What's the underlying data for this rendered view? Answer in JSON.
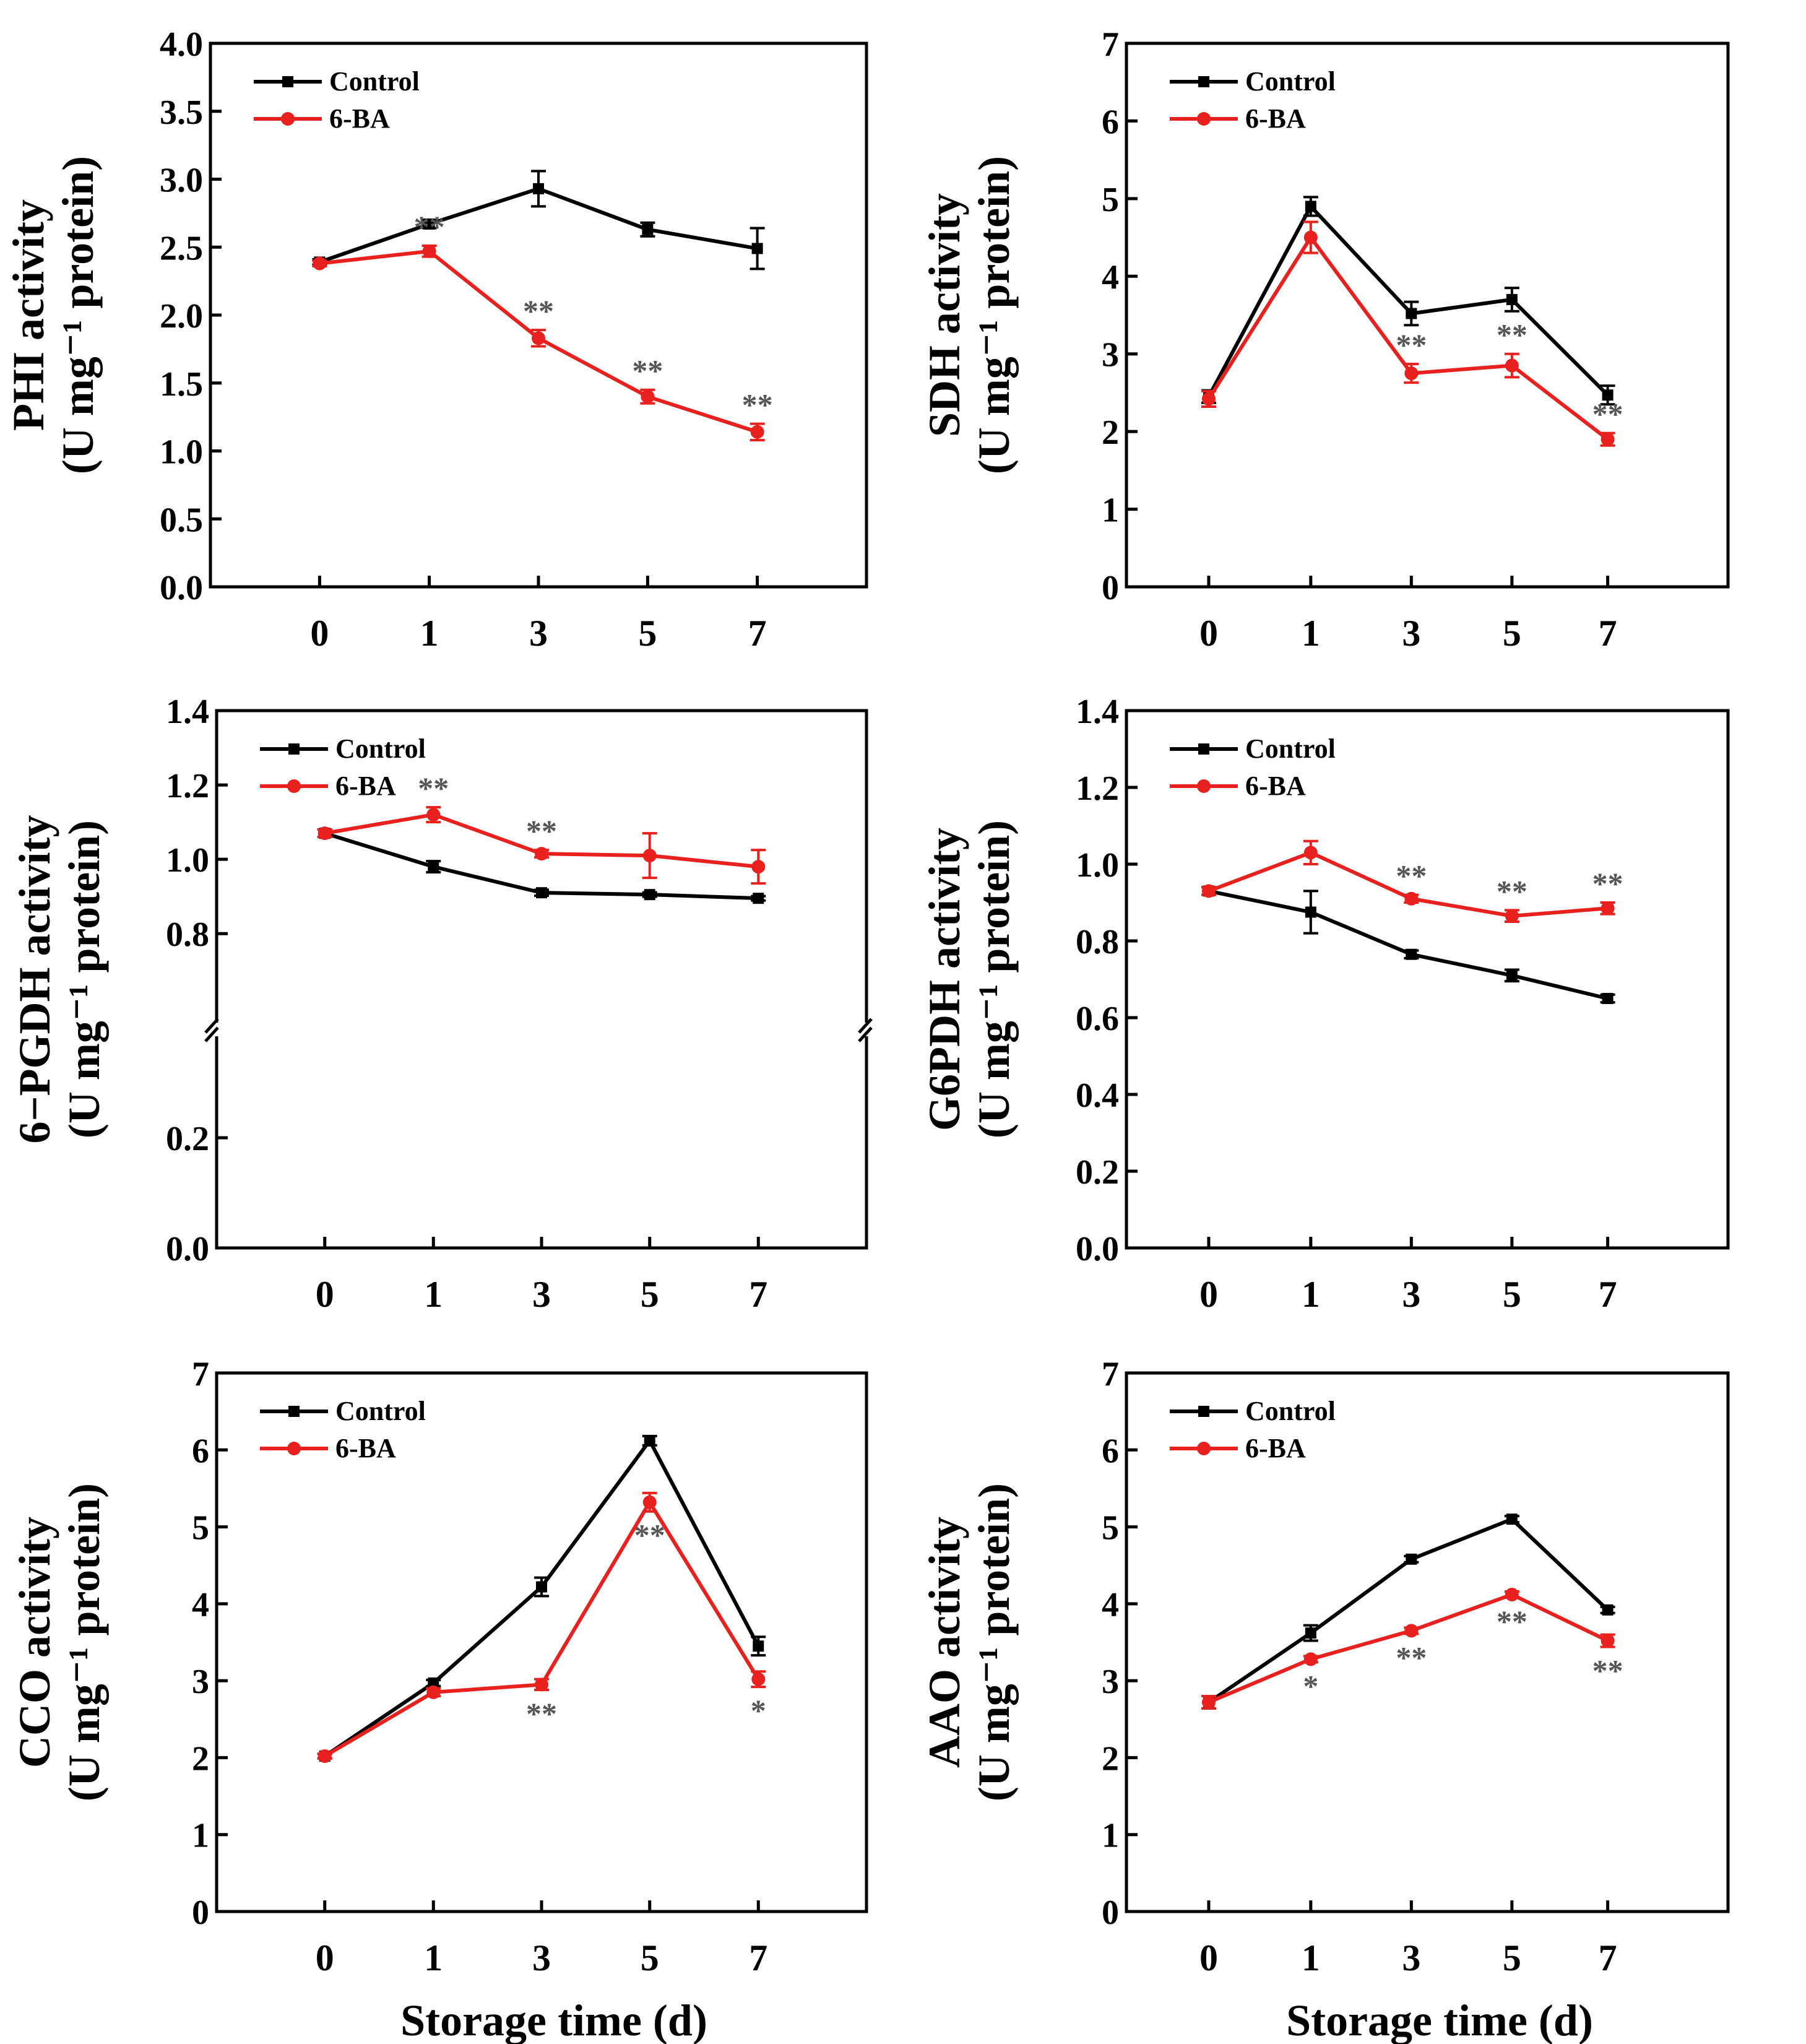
{
  "figure": {
    "x_axis_title": "Storage time (d)",
    "legend_labels": [
      "Control",
      "6-BA"
    ],
    "colors": {
      "control": "#000000",
      "treatment": "#e8201e",
      "annotation": "#555555"
    }
  },
  "chart_data": [
    {
      "type": "line",
      "title": "",
      "xlabel": "",
      "ylabel": "PHI activity",
      "yunit": "(U mg⁻¹ protein)",
      "categories": [
        "0",
        "1",
        "3",
        "5",
        "7"
      ],
      "ylim": [
        0,
        4.0
      ],
      "yticks": [
        "0.0",
        "0.5",
        "1.0",
        "1.5",
        "2.0",
        "2.5",
        "3.0",
        "3.5",
        "4.0"
      ],
      "axis_break": null,
      "legend": {
        "position": "top-left",
        "entries": [
          "Control",
          "6-BA"
        ]
      },
      "series": [
        {
          "name": "Control",
          "values": [
            2.39,
            2.67,
            2.93,
            2.63,
            2.49
          ],
          "errors": [
            0.02,
            0.03,
            0.13,
            0.05,
            0.15
          ],
          "marker": "square"
        },
        {
          "name": "6-BA",
          "values": [
            2.38,
            2.47,
            1.83,
            1.4,
            1.14
          ],
          "errors": [
            0.02,
            0.04,
            0.06,
            0.05,
            0.06
          ],
          "marker": "circle"
        }
      ],
      "annotations": [
        {
          "x": "1",
          "y": 2.47,
          "text": "**"
        },
        {
          "x": "3",
          "y": 1.83,
          "text": "**"
        },
        {
          "x": "5",
          "y": 1.4,
          "text": "**"
        },
        {
          "x": "7",
          "y": 1.14,
          "text": "**"
        }
      ]
    },
    {
      "type": "line",
      "title": "",
      "xlabel": "",
      "ylabel": "SDH activity",
      "yunit": "(U mg⁻¹ protein)",
      "categories": [
        "0",
        "1",
        "3",
        "5",
        "7"
      ],
      "ylim": [
        0,
        7
      ],
      "yticks": [
        "0",
        "1",
        "2",
        "3",
        "4",
        "5",
        "6",
        "7"
      ],
      "axis_break": null,
      "legend": {
        "position": "top-left",
        "entries": [
          "Control",
          "6-BA"
        ]
      },
      "series": [
        {
          "name": "Control",
          "values": [
            2.45,
            4.9,
            3.52,
            3.7,
            2.47
          ],
          "errors": [
            0.08,
            0.12,
            0.15,
            0.15,
            0.12
          ],
          "marker": "square"
        },
        {
          "name": "6-BA",
          "values": [
            2.42,
            4.5,
            2.75,
            2.85,
            1.9
          ],
          "errors": [
            0.1,
            0.2,
            0.12,
            0.15,
            0.08
          ],
          "marker": "circle"
        }
      ],
      "annotations": [
        {
          "x": "3",
          "y": 2.75,
          "text": "**"
        },
        {
          "x": "5",
          "y": 2.85,
          "text": "**"
        },
        {
          "x": "7",
          "y": 1.9,
          "text": "**"
        }
      ]
    },
    {
      "type": "line",
      "title": "",
      "xlabel": "",
      "ylabel": "6−PGDH activity",
      "yunit": "(U mg⁻¹ protein)",
      "categories": [
        "0",
        "1",
        "3",
        "5",
        "7"
      ],
      "ylim": [
        0,
        1.4
      ],
      "yticks": [
        "0.0",
        "0.2",
        "0.8",
        "1.0",
        "1.2",
        "1.4"
      ],
      "axis_break": [
        0.2,
        0.8
      ],
      "legend": {
        "position": "top-left",
        "entries": [
          "Control",
          "6-BA"
        ]
      },
      "series": [
        {
          "name": "Control",
          "values": [
            1.07,
            0.98,
            0.91,
            0.905,
            0.895
          ],
          "errors": [
            0.01,
            0.015,
            0.008,
            0.006,
            0.006
          ],
          "marker": "square"
        },
        {
          "name": "6-BA",
          "values": [
            1.07,
            1.12,
            1.015,
            1.01,
            0.98
          ],
          "errors": [
            0.01,
            0.02,
            0.01,
            0.06,
            0.045
          ],
          "marker": "circle"
        }
      ],
      "annotations": [
        {
          "x": "1",
          "y": 1.12,
          "text": "**"
        },
        {
          "x": "3",
          "y": 1.015,
          "text": "**"
        }
      ]
    },
    {
      "type": "line",
      "title": "",
      "xlabel": "",
      "ylabel": "G6PDH activity",
      "yunit": "(U mg⁻¹ protein)",
      "categories": [
        "0",
        "1",
        "3",
        "5",
        "7"
      ],
      "ylim": [
        0,
        1.4
      ],
      "yticks": [
        "0.0",
        "0.2",
        "0.4",
        "0.6",
        "0.8",
        "1.0",
        "1.2",
        "1.4"
      ],
      "axis_break": null,
      "legend": {
        "position": "top-left",
        "entries": [
          "Control",
          "6-BA"
        ]
      },
      "series": [
        {
          "name": "Control",
          "values": [
            0.93,
            0.875,
            0.765,
            0.71,
            0.65
          ],
          "errors": [
            0.01,
            0.055,
            0.01,
            0.015,
            0.01
          ],
          "marker": "square"
        },
        {
          "name": "6-BA",
          "values": [
            0.93,
            1.03,
            0.91,
            0.865,
            0.885
          ],
          "errors": [
            0.01,
            0.03,
            0.01,
            0.015,
            0.015
          ],
          "marker": "circle"
        }
      ],
      "annotations": [
        {
          "x": "3",
          "y": 0.91,
          "text": "**"
        },
        {
          "x": "5",
          "y": 0.865,
          "text": "**"
        },
        {
          "x": "7",
          "y": 0.885,
          "text": "**"
        }
      ]
    },
    {
      "type": "line",
      "title": "",
      "xlabel": "Storage time (d)",
      "ylabel": "CCO activity",
      "yunit": "(U mg⁻¹ protein)",
      "categories": [
        "0",
        "1",
        "3",
        "5",
        "7"
      ],
      "ylim": [
        0,
        7
      ],
      "yticks": [
        "0",
        "1",
        "2",
        "3",
        "4",
        "5",
        "6",
        "7"
      ],
      "axis_break": null,
      "legend": {
        "position": "top-left",
        "entries": [
          "Control",
          "6-BA"
        ]
      },
      "series": [
        {
          "name": "Control",
          "values": [
            2.02,
            2.97,
            4.22,
            6.12,
            3.45
          ],
          "errors": [
            0.03,
            0.04,
            0.12,
            0.06,
            0.12
          ],
          "marker": "square"
        },
        {
          "name": "6-BA",
          "values": [
            2.02,
            2.85,
            2.95,
            5.32,
            3.02
          ],
          "errors": [
            0.03,
            0.05,
            0.07,
            0.12,
            0.1
          ],
          "marker": "circle"
        }
      ],
      "annotations": [
        {
          "x": "3",
          "y": 2.95,
          "text": "**"
        },
        {
          "x": "5",
          "y": 5.32,
          "text": "**"
        },
        {
          "x": "7",
          "y": 3.02,
          "text": "*"
        }
      ]
    },
    {
      "type": "line",
      "title": "",
      "xlabel": "Storage time (d)",
      "ylabel": "AAO activity",
      "yunit": "(U mg⁻¹ protein)",
      "categories": [
        "0",
        "1",
        "3",
        "5",
        "7"
      ],
      "ylim": [
        0,
        7
      ],
      "yticks": [
        "0",
        "1",
        "2",
        "3",
        "4",
        "5",
        "6",
        "7"
      ],
      "axis_break": null,
      "legend": {
        "position": "top-left",
        "entries": [
          "Control",
          "6-BA"
        ]
      },
      "series": [
        {
          "name": "Control",
          "values": [
            2.72,
            3.62,
            4.58,
            5.1,
            3.92
          ],
          "errors": [
            0.08,
            0.1,
            0.04,
            0.04,
            0.04
          ],
          "marker": "square"
        },
        {
          "name": "6-BA",
          "values": [
            2.72,
            3.28,
            3.65,
            4.12,
            3.52
          ],
          "errors": [
            0.08,
            0.04,
            0.04,
            0.04,
            0.08
          ],
          "marker": "circle"
        }
      ],
      "annotations": [
        {
          "x": "1",
          "y": 3.28,
          "text": "*"
        },
        {
          "x": "3",
          "y": 3.65,
          "text": "**"
        },
        {
          "x": "5",
          "y": 4.12,
          "text": "**"
        },
        {
          "x": "7",
          "y": 3.52,
          "text": "**"
        }
      ]
    }
  ]
}
